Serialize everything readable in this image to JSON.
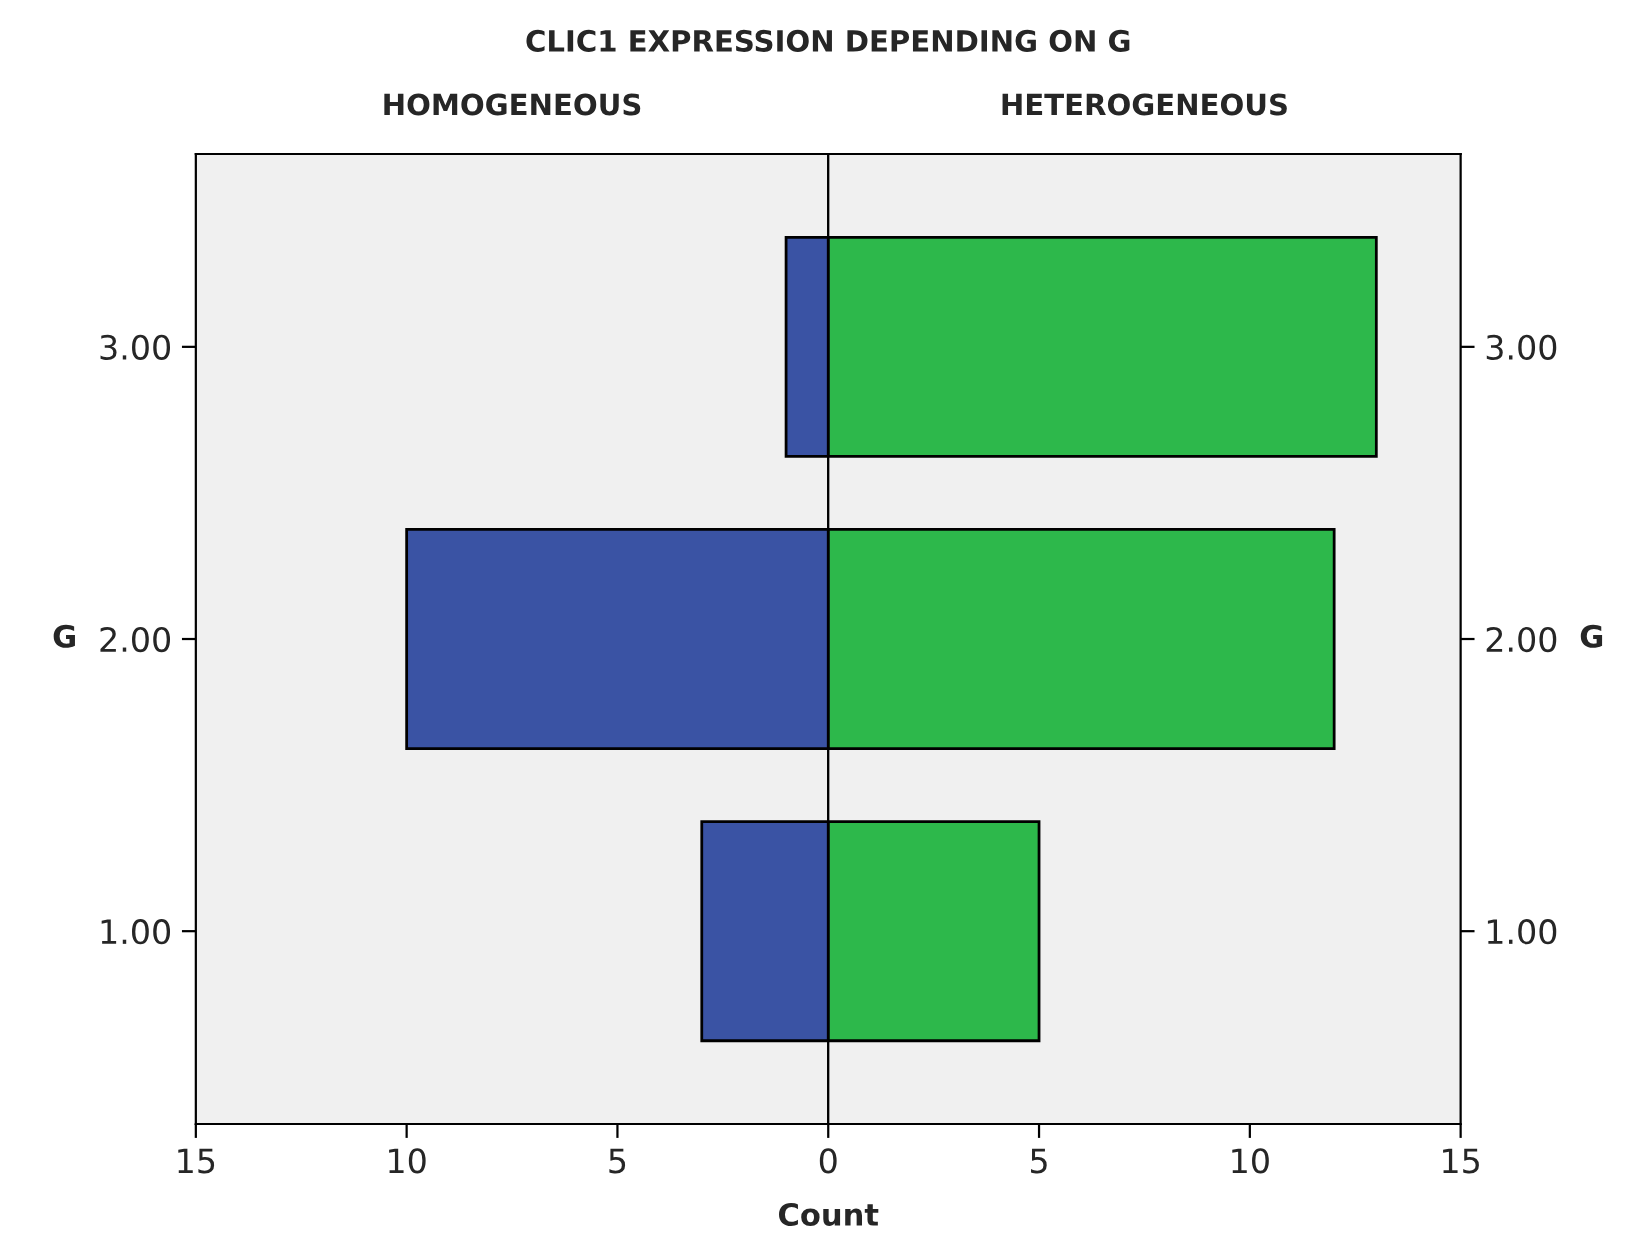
{
  "chart_data": [
    {
      "type": "bar",
      "orientation": "horizontal",
      "title": "CLIC1 EXPRESSION DEPENDING ON G",
      "subtitle": "HOMOGENEOUS",
      "xlabel": "Count",
      "ylabel": "G",
      "categories": [
        "3.00",
        "2.00",
        "1.00"
      ],
      "values": [
        1,
        10,
        3
      ],
      "color": "#3a53a4",
      "xlim": [
        15,
        0
      ],
      "xticks": [
        15,
        10,
        5
      ]
    },
    {
      "type": "bar",
      "orientation": "horizontal",
      "subtitle": "HETEROGENEOUS",
      "ylabel": "G",
      "categories": [
        "3.00",
        "2.00",
        "1.00"
      ],
      "values": [
        13,
        12,
        5
      ],
      "color": "#2db84b",
      "xlim": [
        0,
        15
      ],
      "xticks": [
        0,
        5,
        10,
        15
      ]
    }
  ]
}
